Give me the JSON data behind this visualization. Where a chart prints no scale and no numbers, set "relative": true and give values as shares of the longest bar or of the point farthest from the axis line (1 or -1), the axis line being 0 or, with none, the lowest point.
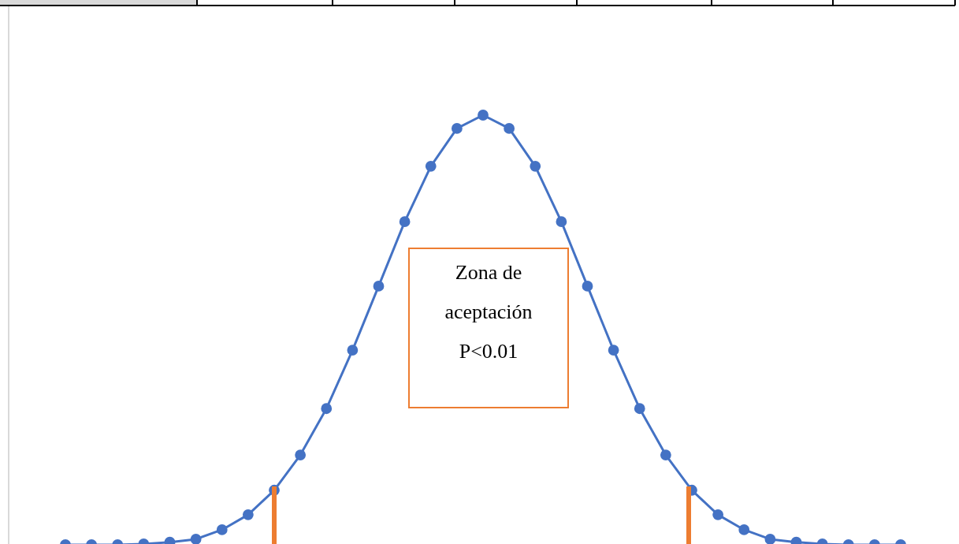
{
  "chart_data": {
    "type": "line",
    "relative": true,
    "marker": "circle",
    "categories": [
      null,
      null,
      null,
      null,
      null,
      null,
      null,
      null,
      null,
      null,
      null,
      null,
      null,
      null,
      null,
      null,
      null,
      null,
      null,
      null,
      null,
      null,
      null,
      null,
      null,
      null,
      null,
      null,
      null,
      null,
      null,
      null,
      null
    ],
    "series": [
      {
        "color": "#4472c4",
        "values": [
          0,
          0,
          0,
          0.002,
          0.006,
          0.013,
          0.035,
          0.07,
          0.127,
          0.209,
          0.317,
          0.453,
          0.602,
          0.752,
          0.881,
          0.969,
          1,
          0.969,
          0.881,
          0.752,
          0.602,
          0.453,
          0.317,
          0.209,
          0.127,
          0.07,
          0.035,
          0.013,
          0.006,
          0.002,
          0,
          0,
          0
        ]
      }
    ],
    "annotations": [
      "Zona de\naceptación\nP<0.01"
    ]
  }
}
